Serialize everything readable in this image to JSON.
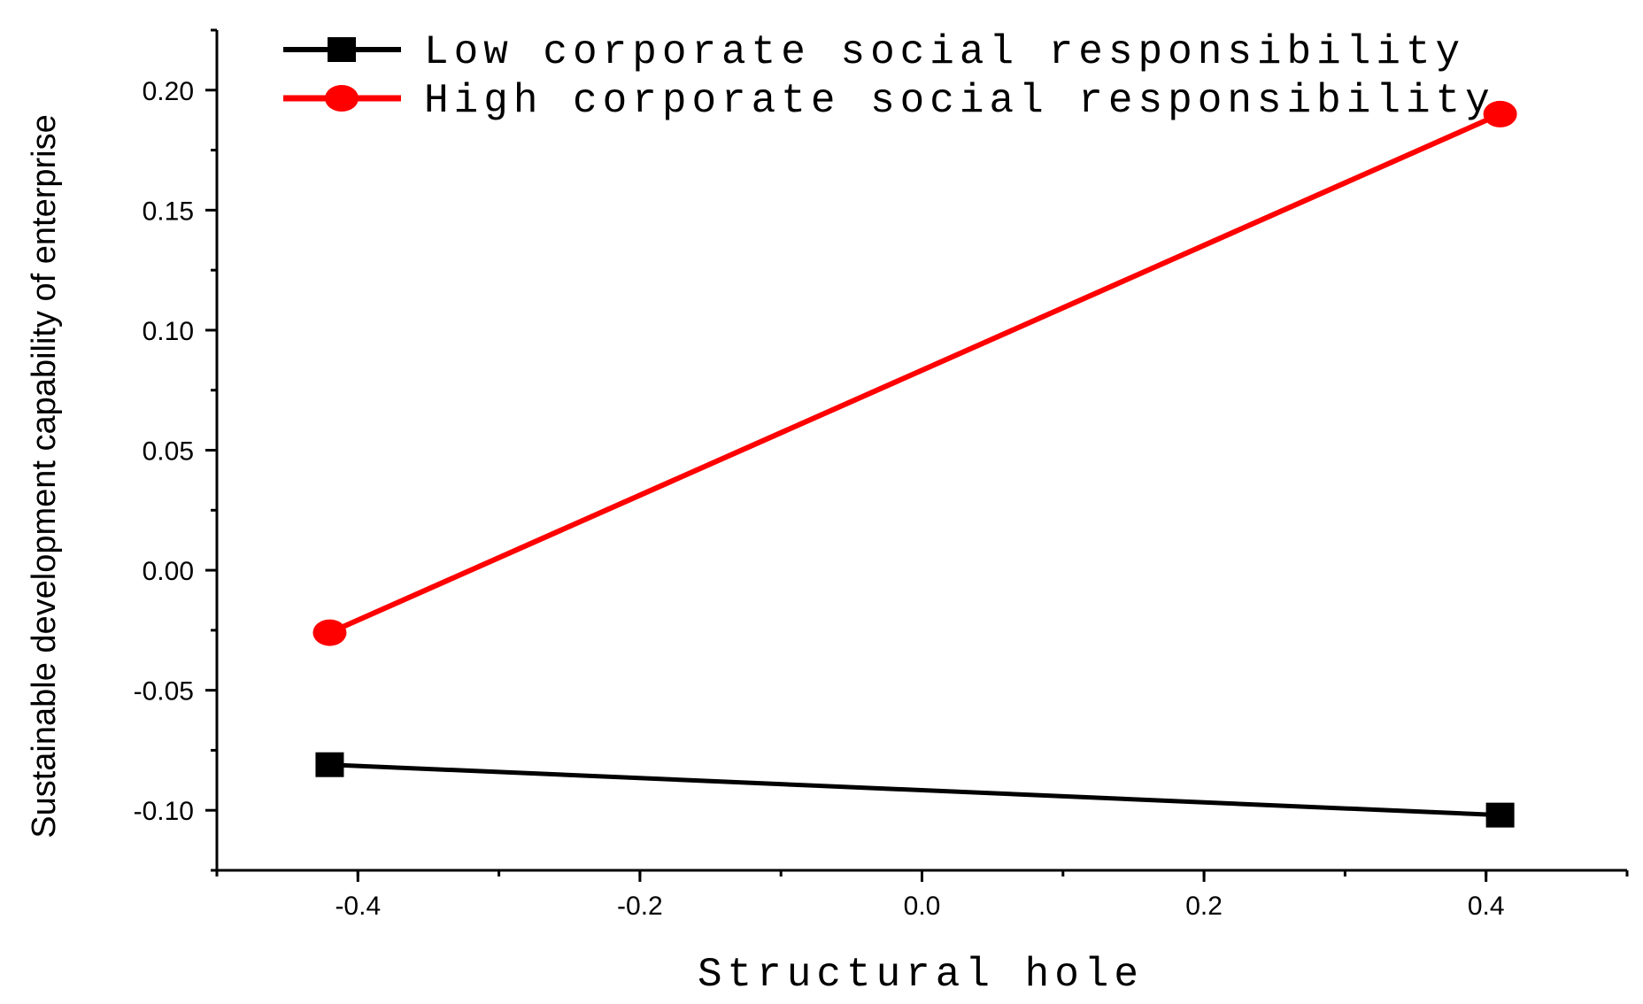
{
  "chart_data": {
    "type": "line",
    "xlabel": "Structural hole",
    "ylabel": "Sustainable development capability of enterprise",
    "xlim": [
      -0.5,
      0.5
    ],
    "ylim": [
      -0.125,
      0.225
    ],
    "x_ticks": [
      "-0.4",
      "-0.2",
      "0.0",
      "0.2",
      "0.4"
    ],
    "x_tick_values": [
      -0.4,
      -0.2,
      0.0,
      0.2,
      0.4
    ],
    "y_ticks": [
      "-0.10",
      "-0.05",
      "0.00",
      "0.05",
      "0.10",
      "0.15",
      "0.20"
    ],
    "y_tick_values": [
      -0.1,
      -0.05,
      0.0,
      0.05,
      0.1,
      0.15,
      0.2
    ],
    "legend_position": "top-left",
    "grid": false,
    "series": [
      {
        "name": "Low corporate social responsibility",
        "color": "#000000",
        "marker": "square",
        "x": [
          -0.42,
          0.41
        ],
        "y": [
          -0.081,
          -0.102
        ]
      },
      {
        "name": "High corporate social responsibility",
        "color": "#ff0000",
        "marker": "circle",
        "x": [
          -0.42,
          0.41
        ],
        "y": [
          -0.026,
          0.19
        ]
      }
    ]
  }
}
